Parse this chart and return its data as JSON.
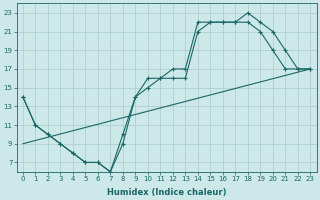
{
  "bg_color": "#cce8e8",
  "grid_color": "#aacccc",
  "line_color": "#1a6666",
  "line1_x": [
    0,
    1,
    2,
    3,
    4,
    5,
    6,
    7,
    8,
    9,
    10,
    11,
    12,
    13,
    14,
    15,
    16,
    17,
    18,
    19,
    20,
    21,
    22,
    23
  ],
  "line1_y": [
    14,
    11,
    10,
    9,
    8,
    7,
    7,
    6,
    10,
    14,
    16,
    16,
    17,
    17,
    22,
    22,
    22,
    22,
    23,
    22,
    21,
    19,
    17,
    17
  ],
  "line2_x": [
    0,
    23
  ],
  "line2_y": [
    9,
    17
  ],
  "line3_x": [
    0,
    1,
    2,
    3,
    4,
    5,
    6,
    7,
    8,
    9,
    10,
    11,
    12,
    13,
    14,
    15,
    16,
    17,
    18,
    19,
    20,
    21,
    22,
    23
  ],
  "line3_y": [
    14,
    11,
    10,
    9,
    8,
    7,
    7,
    6,
    9,
    14,
    15,
    16,
    16,
    16,
    21,
    22,
    22,
    22,
    22,
    21,
    19,
    17,
    17,
    17
  ],
  "xlim": [
    -0.5,
    23.5
  ],
  "ylim": [
    6,
    24
  ],
  "yticks": [
    7,
    9,
    11,
    13,
    15,
    17,
    19,
    21,
    23
  ],
  "xticks": [
    0,
    1,
    2,
    3,
    4,
    5,
    6,
    7,
    8,
    9,
    10,
    11,
    12,
    13,
    14,
    15,
    16,
    17,
    18,
    19,
    20,
    21,
    22,
    23
  ],
  "xlabel": "Humidex (Indice chaleur)",
  "tick_fontsize": 5.0,
  "xlabel_fontsize": 6.0
}
